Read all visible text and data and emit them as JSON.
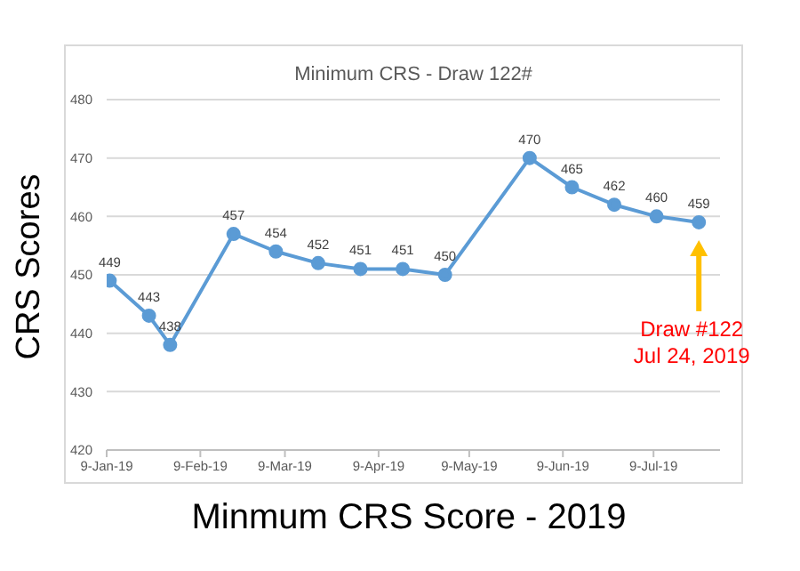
{
  "chart_data": {
    "type": "line",
    "title": "Minimum CRS - Draw  122#",
    "xlabel": "Minmum CRS Score - 2019",
    "ylabel": "CRS Scores",
    "x": [
      "2019-01-10",
      "2019-01-23",
      "2019-01-30",
      "2019-02-20",
      "2019-03-06",
      "2019-03-20",
      "2019-04-03",
      "2019-04-17",
      "2019-05-01",
      "2019-05-29",
      "2019-06-12",
      "2019-06-26",
      "2019-07-10",
      "2019-07-24"
    ],
    "series": [
      {
        "color": "#5b9bd5",
        "values": [
          449,
          443,
          438,
          457,
          454,
          452,
          451,
          451,
          450,
          470,
          465,
          462,
          460,
          459
        ]
      }
    ],
    "xlim": [
      "2019-01-09",
      "2019-07-31"
    ],
    "xticks": [
      {
        "value": "2019-01-09",
        "label": "9-Jan-19"
      },
      {
        "value": "2019-02-09",
        "label": "9-Feb-19"
      },
      {
        "value": "2019-03-09",
        "label": "9-Mar-19"
      },
      {
        "value": "2019-04-09",
        "label": "9-Apr-19"
      },
      {
        "value": "2019-05-09",
        "label": "9-May-19"
      },
      {
        "value": "2019-06-09",
        "label": "9-Jun-19"
      },
      {
        "value": "2019-07-09",
        "label": "9-Jul-19"
      }
    ],
    "ylim": [
      420,
      480
    ],
    "yticks": [
      420,
      430,
      440,
      450,
      460,
      470,
      480
    ],
    "grid": "y",
    "marker": "circle",
    "line_style": "solid",
    "data_labels": true,
    "annotations": [
      "Draw #122\nJul 24, 2019"
    ]
  }
}
